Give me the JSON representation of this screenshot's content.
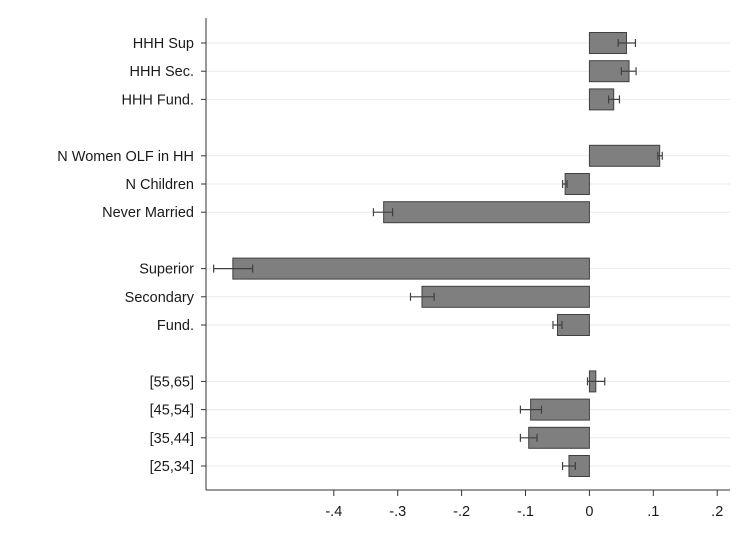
{
  "chart_data": {
    "type": "bar",
    "orientation": "horizontal",
    "title": "",
    "xlabel": "",
    "ylabel": "",
    "xlim": [
      -0.6,
      0.22
    ],
    "x_ticks": [
      -0.4,
      -0.3,
      -0.2,
      -0.1,
      0,
      0.1,
      0.2
    ],
    "x_tick_labels": [
      "-.4",
      "-.3",
      "-.2",
      "-.1",
      "0",
      ".1",
      ".2"
    ],
    "grid": true,
    "legend": "none",
    "bar_color": "#7f7f7f",
    "groups": [
      {
        "items": [
          {
            "label": "HHH Sup",
            "value": 0.058,
            "ci": [
              0.045,
              0.072
            ]
          },
          {
            "label": "HHH Sec.",
            "value": 0.062,
            "ci": [
              0.05,
              0.073
            ]
          },
          {
            "label": "HHH Fund.",
            "value": 0.038,
            "ci": [
              0.03,
              0.047
            ]
          }
        ]
      },
      {
        "items": [
          {
            "label": "N Women OLF in HH",
            "value": 0.11,
            "ci": [
              0.107,
              0.114
            ]
          },
          {
            "label": "N Children",
            "value": -0.038,
            "ci": [
              -0.042,
              -0.035
            ]
          },
          {
            "label": "Never Married",
            "value": -0.322,
            "ci": [
              -0.338,
              -0.308
            ]
          }
        ]
      },
      {
        "items": [
          {
            "label": "Superior",
            "value": -0.558,
            "ci": [
              -0.588,
              -0.527
            ]
          },
          {
            "label": "Secondary",
            "value": -0.262,
            "ci": [
              -0.28,
              -0.243
            ]
          },
          {
            "label": "Fund.",
            "value": -0.05,
            "ci": [
              -0.057,
              -0.043
            ]
          }
        ]
      },
      {
        "items": [
          {
            "label": "[55,65]",
            "value": 0.01,
            "ci": [
              -0.003,
              0.024
            ]
          },
          {
            "label": "[45,54]",
            "value": -0.092,
            "ci": [
              -0.108,
              -0.075
            ]
          },
          {
            "label": "[35,44]",
            "value": -0.095,
            "ci": [
              -0.108,
              -0.082
            ]
          },
          {
            "label": "[25,34]",
            "value": -0.032,
            "ci": [
              -0.042,
              -0.022
            ]
          }
        ]
      }
    ]
  }
}
